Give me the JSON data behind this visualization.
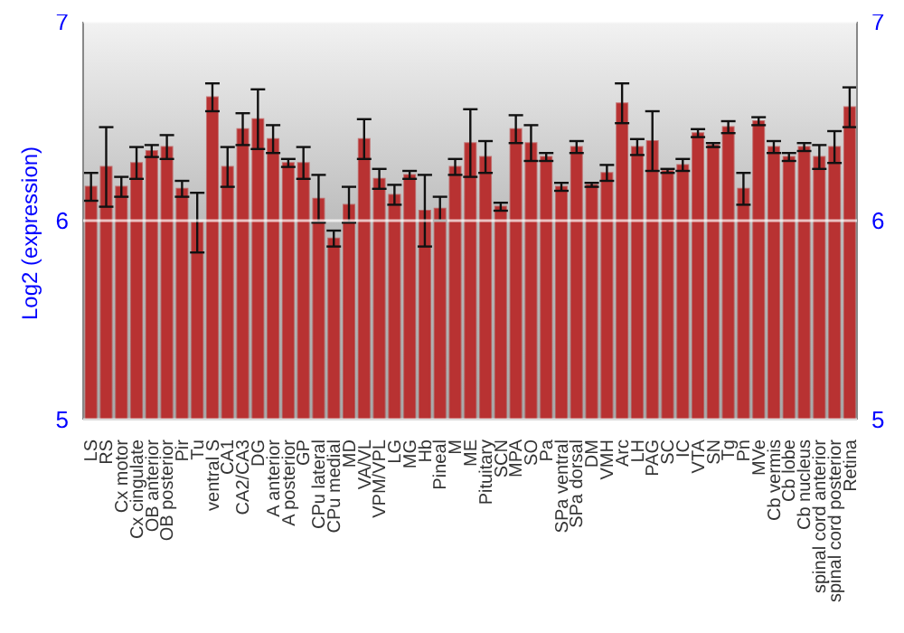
{
  "chart_data": {
    "type": "bar",
    "ylabel": "Log2 (expression)",
    "categories": [
      "LS",
      "RS",
      "Cx motor",
      "Cx cingulate",
      "OB anterior",
      "OB posterior",
      "Pir",
      "Tu",
      "ventral S",
      "CA1",
      "CA2/CA3",
      "DG",
      "A anterior",
      "A posterior",
      "GP",
      "CPu lateral",
      "CPu medial",
      "MD",
      "VA/VL",
      "VPM/VPL",
      "LG",
      "MG",
      "Hb",
      "Pineal",
      "M",
      "ME",
      "Pituitary",
      "SCN",
      "MPA",
      "SO",
      "Pa",
      "SPa ventral",
      "SPa dorsal",
      "DM",
      "VMH",
      "Arc",
      "LH",
      "PAG",
      "SC",
      "IC",
      "VTA",
      "SN",
      "Tg",
      "Pn",
      "MVe",
      "Cb vermis",
      "Cb lobe",
      "Cb nucleus",
      "spinal cord anterior",
      "spinal cord posterior",
      "Retina"
    ],
    "values": [
      6.17,
      6.27,
      6.17,
      6.29,
      6.35,
      6.37,
      6.16,
      5.99,
      6.62,
      6.27,
      6.46,
      6.51,
      6.41,
      6.29,
      6.29,
      6.11,
      5.91,
      6.08,
      6.41,
      6.21,
      6.13,
      6.23,
      6.05,
      6.06,
      6.27,
      6.39,
      6.32,
      6.07,
      6.46,
      6.39,
      6.32,
      6.17,
      6.37,
      6.18,
      6.24,
      6.59,
      6.37,
      6.4,
      6.25,
      6.28,
      6.44,
      6.38,
      6.47,
      6.16,
      6.5,
      6.37,
      6.32,
      6.37,
      6.32,
      6.37,
      6.57
    ],
    "errors": [
      0.07,
      0.2,
      0.05,
      0.08,
      0.03,
      0.06,
      0.04,
      0.15,
      0.07,
      0.1,
      0.08,
      0.15,
      0.07,
      0.02,
      0.08,
      0.12,
      0.04,
      0.09,
      0.1,
      0.05,
      0.05,
      0.02,
      0.18,
      0.06,
      0.04,
      0.17,
      0.08,
      0.02,
      0.07,
      0.09,
      0.02,
      0.02,
      0.03,
      0.01,
      0.04,
      0.1,
      0.04,
      0.15,
      0.01,
      0.03,
      0.02,
      0.01,
      0.03,
      0.08,
      0.02,
      0.03,
      0.02,
      0.02,
      0.06,
      0.08,
      0.1
    ],
    "color": "#b83232",
    "ylim": [
      5,
      7
    ],
    "yticks": [
      5,
      6,
      7
    ],
    "y2lim": [
      5,
      7
    ],
    "y2ticks": [
      5,
      6,
      7
    ],
    "grid": "y"
  }
}
